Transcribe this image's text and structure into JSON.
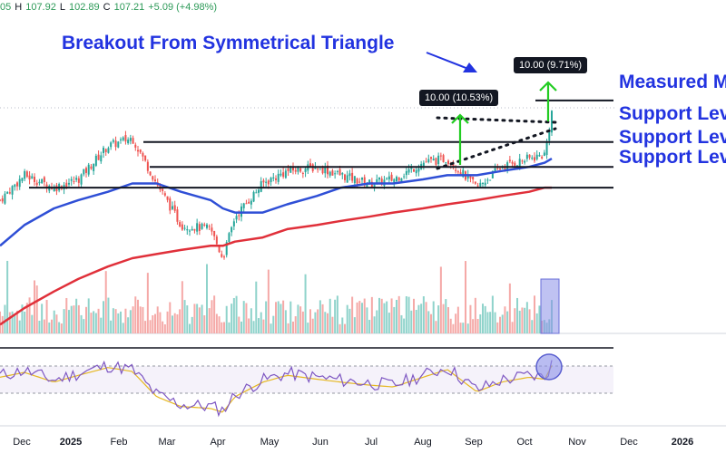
{
  "ohlc": {
    "open": "05",
    "high_label": "H",
    "high": "107.92",
    "low_label": "L",
    "low": "102.89",
    "close_label": "C",
    "close": "107.21",
    "change": "+5.09 (+4.98%)"
  },
  "annotations": {
    "headline": "Breakout From Symmetrical Triangle",
    "measured_move": "Measured M",
    "support_1": "Support Lev",
    "support_2": "Support Lev",
    "support_3": "Support Lev",
    "callout_left": "10.00 (10.53%)",
    "callout_right": "10.00 (9.71%)"
  },
  "colors": {
    "up": "#26a69a",
    "down": "#ef5350",
    "ma50": "#2f4fd6",
    "ma200": "#e0303a",
    "rsi": "#7e57c2",
    "rsi_ma": "#e6b822",
    "annotation": "#2233e0",
    "arrow": "#22cc22"
  },
  "chart_data": {
    "type": "line",
    "x": [
      "2024-12-01",
      "2024-12-15",
      "2025-01-01",
      "2025-01-15",
      "2025-02-01",
      "2025-02-15",
      "2025-03-01",
      "2025-03-15",
      "2025-04-01",
      "2025-04-08",
      "2025-04-15",
      "2025-05-01",
      "2025-05-15",
      "2025-06-01",
      "2025-06-15",
      "2025-07-01",
      "2025-07-15",
      "2025-08-01",
      "2025-08-15",
      "2025-09-01",
      "2025-09-15",
      "2025-10-01",
      "2025-10-10",
      "2025-10-14"
    ],
    "series": [
      {
        "values": [
          86,
          92,
          89,
          91,
          99,
          101,
          90,
          80,
          79,
          72,
          82,
          90,
          93,
          94,
          92,
          90,
          91,
          95,
          96,
          89,
          94,
          96,
          97,
          107.21
        ]
      },
      {
        "values": [
          75,
          80,
          84,
          86,
          88,
          90,
          90,
          88,
          86,
          84,
          83,
          83,
          85,
          87,
          89,
          90,
          90,
          91,
          92,
          92,
          93,
          94,
          95,
          96
        ]
      },
      {
        "values": [
          56,
          60,
          64,
          67,
          70,
          72,
          73,
          74,
          75,
          75,
          76,
          77,
          79,
          80,
          81,
          82,
          83,
          84,
          85,
          86,
          87,
          88,
          89,
          89
        ]
      }
    ],
    "support_levels": [
      100,
      94,
      89
    ],
    "measured_move_target": 110,
    "rsi": [
      60,
      65,
      55,
      62,
      70,
      66,
      40,
      30,
      28,
      24,
      40,
      55,
      62,
      58,
      55,
      52,
      50,
      60,
      68,
      45,
      55,
      60,
      58,
      72
    ],
    "x_tick_labels": [
      "Dec",
      "2025",
      "Feb",
      "Mar",
      "Apr",
      "May",
      "Jun",
      "Jul",
      "Aug",
      "Sep",
      "Oct",
      "Nov",
      "Dec",
      "2026"
    ],
    "price_range": [
      60,
      115
    ],
    "grid": false
  }
}
